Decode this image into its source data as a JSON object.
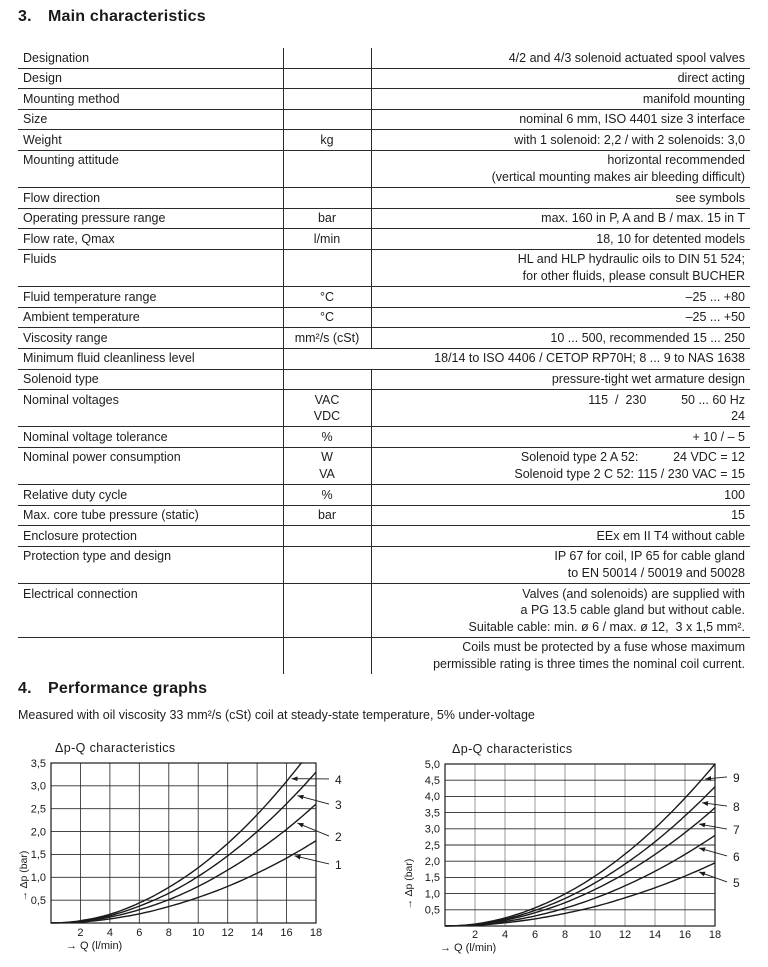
{
  "sections": {
    "main": {
      "number": "3.",
      "title": "Main characteristics"
    },
    "performance": {
      "number": "4.",
      "title": "Performance graphs",
      "note": "Measured with oil viscosity 33 mm²/s (cSt) coil at steady-state temperature, 5% under-voltage"
    }
  },
  "table": {
    "rows": [
      {
        "label": "Designation",
        "unit": [],
        "value": [
          "4/2 and 4/3 solenoid actuated spool valves"
        ]
      },
      {
        "label": "Design",
        "unit": [],
        "value": [
          "direct acting"
        ]
      },
      {
        "label": "Mounting method",
        "unit": [],
        "value": [
          "manifold mounting"
        ]
      },
      {
        "label": "Size",
        "unit": [],
        "value": [
          "nominal 6 mm, ISO 4401 size 3 interface"
        ]
      },
      {
        "label": "Weight",
        "unit": [
          "kg"
        ],
        "value": [
          "with 1 solenoid: 2,2 / with 2 solenoids: 3,0"
        ]
      },
      {
        "label": "Mounting attitude",
        "unit": [],
        "value": [
          "horizontal recommended",
          "(vertical mounting makes air bleeding difficult)"
        ]
      },
      {
        "label": "Flow direction",
        "unit": [],
        "value": [
          "see symbols"
        ]
      },
      {
        "label": "Operating pressure range",
        "unit": [
          "bar"
        ],
        "value": [
          "max. 160 in P, A and B / max. 15 in T"
        ]
      },
      {
        "label": "Flow rate, Qmax",
        "unit": [
          "l/min"
        ],
        "value": [
          "18, 10 for detented models"
        ]
      },
      {
        "label": "Fluids",
        "unit": [],
        "value": [
          "HL and HLP hydraulic oils to DIN 51 524;",
          "for other fluids, please consult BUCHER"
        ]
      },
      {
        "label": "Fluid temperature range",
        "unit": [
          "°C"
        ],
        "value": [
          "–25 ... +80"
        ]
      },
      {
        "label": "Ambient temperature",
        "unit": [
          "°C"
        ],
        "value": [
          "–25 ... +50"
        ]
      },
      {
        "label": "Viscosity range",
        "unit": [
          "mm²/s (cSt)"
        ],
        "value": [
          "10 ... 500, recommended 15 ... 250"
        ]
      },
      {
        "label": "Minimum fluid cleanliness level",
        "merged": true,
        "unit": [],
        "value": [
          "18/14 to ISO 4406 / CETOP RP70H; 8 ... 9 to NAS 1638"
        ]
      },
      {
        "label": "Solenoid type",
        "unit": [],
        "value": [
          "pressure-tight wet armature design"
        ]
      },
      {
        "label": "Nominal voltages",
        "unit": [
          "VAC",
          "VDC"
        ],
        "value": [
          "115  /  230          50 ... 60 Hz",
          "24"
        ]
      },
      {
        "label": "Nominal voltage tolerance",
        "unit": [
          "%"
        ],
        "value": [
          "+ 10 / – 5"
        ]
      },
      {
        "label": "Nominal power consumption",
        "unit": [
          "W",
          "VA"
        ],
        "value": [
          "Solenoid type 2 A 52:          24 VDC = 12",
          "Solenoid type 2 C 52: 115 / 230 VAC = 15"
        ]
      },
      {
        "label": "Relative duty cycle",
        "unit": [
          "%"
        ],
        "value": [
          "100"
        ]
      },
      {
        "label": "Max. core tube pressure (static)",
        "unit": [
          "bar"
        ],
        "value": [
          "15"
        ]
      },
      {
        "label": "Enclosure protection",
        "unit": [],
        "value": [
          "EEx em II T4 without cable"
        ]
      },
      {
        "label": "Protection type and design",
        "unit": [],
        "value": [
          "IP 67 for coil, IP 65 for cable gland",
          "to EN 50014 / 50019 and 50028"
        ]
      },
      {
        "label": "Electrical connection",
        "unit": [],
        "value": [
          "Valves (and solenoids) are supplied with",
          "a PG 13.5 cable gland but without cable.",
          "Suitable cable: min. ø 6 / max. ø 12,  3 x 1,5 mm²."
        ]
      },
      {
        "label": "",
        "unit": [],
        "value": [
          "Coils must be protected by a fuse whose maximum",
          "permissible rating is three times the nominal coil current."
        ]
      }
    ]
  },
  "chart_data": [
    {
      "type": "line",
      "title": "Δp-Q characteristics",
      "xlabel": "→ Q (l/min)",
      "ylabel": "→ Δp (bar)",
      "xlim": [
        0,
        18
      ],
      "ylim": [
        0,
        3.5
      ],
      "x_ticks": [
        2,
        4,
        6,
        8,
        10,
        12,
        14,
        16,
        18
      ],
      "y_ticks": [
        0.5,
        1.0,
        1.5,
        2.0,
        2.5,
        3.0,
        3.5
      ],
      "y_tick_labels": [
        "0,5",
        "1,0",
        "1,5",
        "2,0",
        "2,5",
        "3,0",
        "3,5"
      ],
      "grid": true,
      "line_color": "#1a1a1a",
      "x": [
        0,
        2,
        4,
        6,
        8,
        10,
        12,
        14,
        16,
        18
      ],
      "series": [
        {
          "name": "1",
          "values": [
            0,
            0.02,
            0.09,
            0.2,
            0.36,
            0.56,
            0.8,
            1.09,
            1.42,
            1.8
          ],
          "label_y": 1.27,
          "leader_q": 16.4
        },
        {
          "name": "2",
          "values": [
            0,
            0.03,
            0.13,
            0.29,
            0.51,
            0.8,
            1.16,
            1.57,
            2.05,
            2.6
          ],
          "label_y": 1.88,
          "leader_q": 16.6
        },
        {
          "name": "3",
          "values": [
            0,
            0.04,
            0.16,
            0.37,
            0.65,
            1.02,
            1.47,
            2.0,
            2.61,
            3.3
          ],
          "label_y": 2.58,
          "leader_q": 16.6
        },
        {
          "name": "4",
          "values": [
            0,
            0.05,
            0.19,
            0.44,
            0.78,
            1.21,
            1.74,
            2.37,
            3.1,
            3.92
          ],
          "label_y": 3.13,
          "leader_q": 16.2
        }
      ]
    },
    {
      "type": "line",
      "title": "Δp-Q characteristics",
      "xlabel": "→ Q (l/min)",
      "ylabel": "→ Δp (bar)",
      "xlim": [
        0,
        18
      ],
      "ylim": [
        0,
        5.0
      ],
      "x_ticks": [
        2,
        4,
        6,
        8,
        10,
        12,
        14,
        16,
        18
      ],
      "y_ticks": [
        0.5,
        1.0,
        1.5,
        2.0,
        2.5,
        3.0,
        3.5,
        4.0,
        4.5,
        5.0
      ],
      "y_tick_labels": [
        "0,5",
        "1,0",
        "1,5",
        "2,0",
        "2,5",
        "3,0",
        "3,5",
        "4,0",
        "4,5",
        "5,0"
      ],
      "grid": true,
      "line_color": "#1a1a1a",
      "x": [
        0,
        2,
        4,
        6,
        8,
        10,
        12,
        14,
        16,
        18
      ],
      "series": [
        {
          "name": "5",
          "values": [
            0,
            0.02,
            0.1,
            0.22,
            0.39,
            0.6,
            0.87,
            1.18,
            1.54,
            1.95
          ],
          "label_y": 1.33,
          "leader_q": 16.8
        },
        {
          "name": "6",
          "values": [
            0,
            0.03,
            0.14,
            0.31,
            0.55,
            0.86,
            1.24,
            1.69,
            2.21,
            2.8
          ],
          "label_y": 2.13,
          "leader_q": 16.8
        },
        {
          "name": "7",
          "values": [
            0,
            0.05,
            0.18,
            0.41,
            0.72,
            1.13,
            1.62,
            2.21,
            2.88,
            3.65
          ],
          "label_y": 2.96,
          "leader_q": 16.8
        },
        {
          "name": "8",
          "values": [
            0,
            0.05,
            0.21,
            0.48,
            0.85,
            1.33,
            1.91,
            2.6,
            3.4,
            4.3
          ],
          "label_y": 3.67,
          "leader_q": 17.0
        },
        {
          "name": "9",
          "values": [
            0,
            0.06,
            0.25,
            0.56,
            0.99,
            1.54,
            2.22,
            3.02,
            3.95,
            5.0
          ],
          "label_y": 4.57,
          "leader_q": 17.2
        }
      ]
    }
  ]
}
